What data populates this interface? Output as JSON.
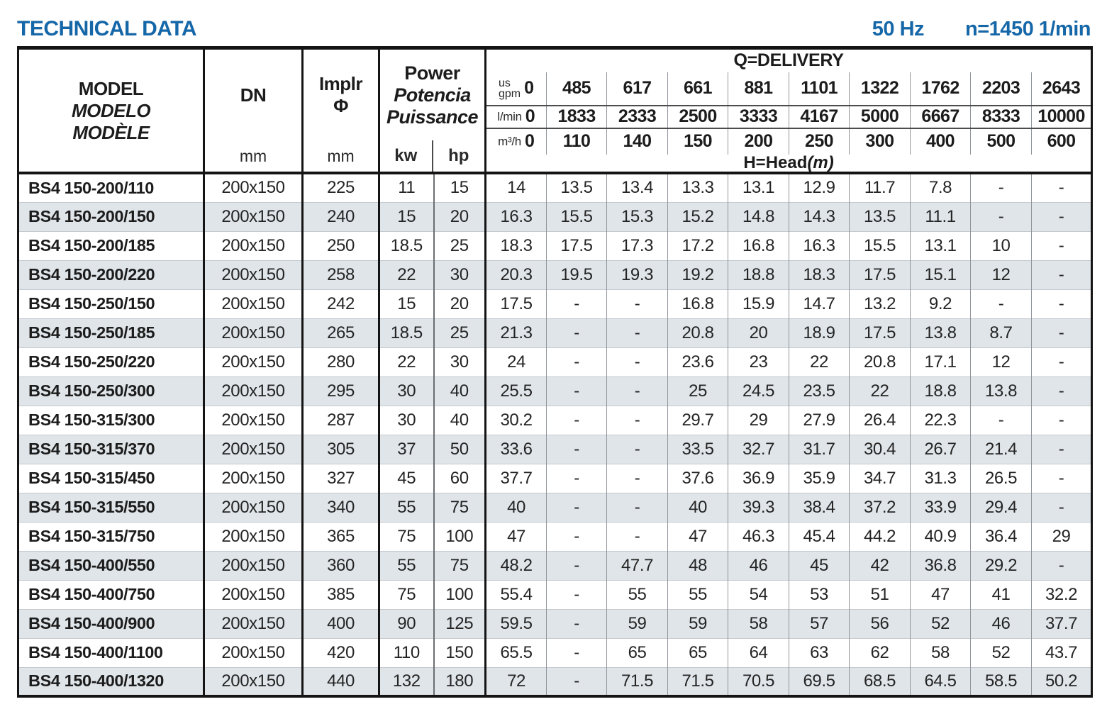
{
  "title": "TECHNICAL DATA",
  "frequency": "50 Hz",
  "speed": "n=1450 1/min",
  "colors": {
    "accent_blue": "#1667a8",
    "stripe": "#e0e5e9"
  },
  "table": {
    "model_header": {
      "lines": [
        "MODEL",
        "MODELO",
        "MODÈLE"
      ]
    },
    "dn_header": {
      "label": "DN",
      "unit": "mm"
    },
    "impeller_header": {
      "label": "Implr",
      "symbol": "Φ",
      "unit": "mm"
    },
    "power_header": {
      "lines": [
        "Power",
        "Potencia",
        "Puissance"
      ],
      "kw_label": "kw",
      "hp_label": "hp"
    },
    "delivery": {
      "title": "Q=DELIVERY",
      "unit_rows": [
        {
          "unit_top": "us",
          "unit_bottom": "gpm",
          "zero": "0",
          "values": [
            "485",
            "617",
            "661",
            "881",
            "1101",
            "1322",
            "1762",
            "2203",
            "2643"
          ]
        },
        {
          "unit": "l/min",
          "zero": "0",
          "values": [
            "1833",
            "2333",
            "2500",
            "3333",
            "4167",
            "5000",
            "6667",
            "8333",
            "10000"
          ]
        },
        {
          "unit": "m³/h",
          "zero": "0",
          "values": [
            "110",
            "140",
            "150",
            "200",
            "250",
            "300",
            "400",
            "500",
            "600"
          ]
        }
      ],
      "head_label": "H=Head",
      "head_unit": "(m)"
    },
    "rows": [
      {
        "model": "BS4 150-200/110",
        "dn": "200x150",
        "impeller": "225",
        "kw": "11",
        "hp": "15",
        "heads": [
          "14",
          "13.5",
          "13.4",
          "13.3",
          "13.1",
          "12.9",
          "11.7",
          "7.8",
          "-",
          "-"
        ]
      },
      {
        "model": "BS4 150-200/150",
        "dn": "200x150",
        "impeller": "240",
        "kw": "15",
        "hp": "20",
        "heads": [
          "16.3",
          "15.5",
          "15.3",
          "15.2",
          "14.8",
          "14.3",
          "13.5",
          "11.1",
          "-",
          "-"
        ]
      },
      {
        "model": "BS4 150-200/185",
        "dn": "200x150",
        "impeller": "250",
        "kw": "18.5",
        "hp": "25",
        "heads": [
          "18.3",
          "17.5",
          "17.3",
          "17.2",
          "16.8",
          "16.3",
          "15.5",
          "13.1",
          "10",
          "-"
        ]
      },
      {
        "model": "BS4 150-200/220",
        "dn": "200x150",
        "impeller": "258",
        "kw": "22",
        "hp": "30",
        "heads": [
          "20.3",
          "19.5",
          "19.3",
          "19.2",
          "18.8",
          "18.3",
          "17.5",
          "15.1",
          "12",
          "-"
        ]
      },
      {
        "model": "BS4 150-250/150",
        "dn": "200x150",
        "impeller": "242",
        "kw": "15",
        "hp": "20",
        "heads": [
          "17.5",
          "-",
          "-",
          "16.8",
          "15.9",
          "14.7",
          "13.2",
          "9.2",
          "-",
          "-"
        ]
      },
      {
        "model": "BS4 150-250/185",
        "dn": "200x150",
        "impeller": "265",
        "kw": "18.5",
        "hp": "25",
        "heads": [
          "21.3",
          "-",
          "-",
          "20.8",
          "20",
          "18.9",
          "17.5",
          "13.8",
          "8.7",
          "-"
        ]
      },
      {
        "model": "BS4 150-250/220",
        "dn": "200x150",
        "impeller": "280",
        "kw": "22",
        "hp": "30",
        "heads": [
          "24",
          "-",
          "-",
          "23.6",
          "23",
          "22",
          "20.8",
          "17.1",
          "12",
          "-"
        ]
      },
      {
        "model": "BS4 150-250/300",
        "dn": "200x150",
        "impeller": "295",
        "kw": "30",
        "hp": "40",
        "heads": [
          "25.5",
          "-",
          "-",
          "25",
          "24.5",
          "23.5",
          "22",
          "18.8",
          "13.8",
          "-"
        ]
      },
      {
        "model": "BS4 150-315/300",
        "dn": "200x150",
        "impeller": "287",
        "kw": "30",
        "hp": "40",
        "heads": [
          "30.2",
          "-",
          "-",
          "29.7",
          "29",
          "27.9",
          "26.4",
          "22.3",
          "-",
          "-"
        ]
      },
      {
        "model": "BS4 150-315/370",
        "dn": "200x150",
        "impeller": "305",
        "kw": "37",
        "hp": "50",
        "heads": [
          "33.6",
          "-",
          "-",
          "33.5",
          "32.7",
          "31.7",
          "30.4",
          "26.7",
          "21.4",
          "-"
        ]
      },
      {
        "model": "BS4 150-315/450",
        "dn": "200x150",
        "impeller": "327",
        "kw": "45",
        "hp": "60",
        "heads": [
          "37.7",
          "-",
          "-",
          "37.6",
          "36.9",
          "35.9",
          "34.7",
          "31.3",
          "26.5",
          "-"
        ]
      },
      {
        "model": "BS4 150-315/550",
        "dn": "200x150",
        "impeller": "340",
        "kw": "55",
        "hp": "75",
        "heads": [
          "40",
          "-",
          "-",
          "40",
          "39.3",
          "38.4",
          "37.2",
          "33.9",
          "29.4",
          "-"
        ]
      },
      {
        "model": "BS4 150-315/750",
        "dn": "200x150",
        "impeller": "365",
        "kw": "75",
        "hp": "100",
        "heads": [
          "47",
          "-",
          "-",
          "47",
          "46.3",
          "45.4",
          "44.2",
          "40.9",
          "36.4",
          "29"
        ]
      },
      {
        "model": "BS4 150-400/550",
        "dn": "200x150",
        "impeller": "360",
        "kw": "55",
        "hp": "75",
        "heads": [
          "48.2",
          "-",
          "47.7",
          "48",
          "46",
          "45",
          "42",
          "36.8",
          "29.2",
          "-"
        ]
      },
      {
        "model": "BS4 150-400/750",
        "dn": "200x150",
        "impeller": "385",
        "kw": "75",
        "hp": "100",
        "heads": [
          "55.4",
          "-",
          "55",
          "55",
          "54",
          "53",
          "51",
          "47",
          "41",
          "32.2"
        ]
      },
      {
        "model": "BS4 150-400/900",
        "dn": "200x150",
        "impeller": "400",
        "kw": "90",
        "hp": "125",
        "heads": [
          "59.5",
          "-",
          "59",
          "59",
          "58",
          "57",
          "56",
          "52",
          "46",
          "37.7"
        ]
      },
      {
        "model": "BS4 150-400/1100",
        "dn": "200x150",
        "impeller": "420",
        "kw": "110",
        "hp": "150",
        "heads": [
          "65.5",
          "-",
          "65",
          "65",
          "64",
          "63",
          "62",
          "58",
          "52",
          "43.7"
        ]
      },
      {
        "model": "BS4 150-400/1320",
        "dn": "200x150",
        "impeller": "440",
        "kw": "132",
        "hp": "180",
        "heads": [
          "72",
          "-",
          "71.5",
          "71.5",
          "70.5",
          "69.5",
          "68.5",
          "64.5",
          "58.5",
          "50.2"
        ]
      }
    ]
  }
}
